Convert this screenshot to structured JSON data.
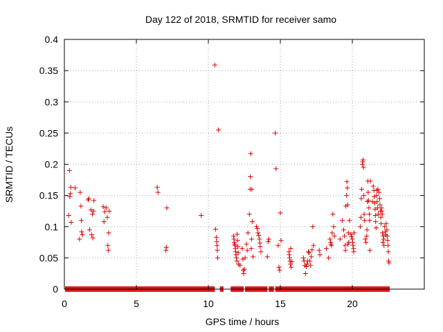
{
  "chart_data": {
    "type": "scatter",
    "title": "Day 122 of 2018, SRMTID for receiver samo",
    "xlabel": "GPS time / hours",
    "ylabel": "SRMTID / TECUs",
    "xlim": [
      0,
      25
    ],
    "ylim": [
      0,
      0.4
    ],
    "x_ticks": [
      0,
      5,
      10,
      15,
      20
    ],
    "x_tick_labels": [
      "0",
      "5",
      "10",
      "15",
      "20"
    ],
    "y_ticks": [
      0,
      0.05,
      0.1,
      0.15,
      0.2,
      0.25,
      0.3,
      0.35,
      0.4
    ],
    "y_tick_labels": [
      "0",
      "0.05",
      "0.1",
      "0.15",
      "0.2",
      "0.25",
      "0.3",
      "0.35",
      "0.4"
    ],
    "grid": true,
    "marker": "plus",
    "series_color": "#dd0000",
    "zero_baseline_ranges": [
      [
        0.05,
        10.45
      ],
      [
        10.8,
        11.05
      ],
      [
        11.55,
        12.45
      ],
      [
        12.55,
        14.1
      ],
      [
        14.2,
        14.55
      ],
      [
        14.65,
        22.6
      ]
    ],
    "series": [
      {
        "name": "SRMTID",
        "points": [
          [
            0.3,
            0.118
          ],
          [
            0.35,
            0.19
          ],
          [
            0.38,
            0.148
          ],
          [
            0.42,
            0.153
          ],
          [
            0.45,
            0.163
          ],
          [
            0.48,
            0.107
          ],
          [
            0.75,
            0.162
          ],
          [
            1.05,
            0.08
          ],
          [
            1.1,
            0.155
          ],
          [
            1.15,
            0.133
          ],
          [
            1.2,
            0.092
          ],
          [
            1.25,
            0.087
          ],
          [
            1.18,
            0.11
          ],
          [
            1.65,
            0.143
          ],
          [
            1.7,
            0.145
          ],
          [
            1.75,
            0.095
          ],
          [
            1.85,
            0.127
          ],
          [
            1.9,
            0.087
          ],
          [
            1.95,
            0.12
          ],
          [
            1.98,
            0.082
          ],
          [
            2.02,
            0.125
          ],
          [
            2.05,
            0.142
          ],
          [
            2.7,
            0.132
          ],
          [
            2.75,
            0.108
          ],
          [
            2.8,
            0.124
          ],
          [
            2.9,
            0.13
          ],
          [
            2.98,
            0.115
          ],
          [
            3.02,
            0.07
          ],
          [
            3.05,
            0.062
          ],
          [
            3.08,
            0.09
          ],
          [
            3.12,
            0.125
          ],
          [
            6.45,
            0.163
          ],
          [
            6.5,
            0.155
          ],
          [
            7.05,
            0.062
          ],
          [
            7.08,
            0.067
          ],
          [
            7.12,
            0.13
          ],
          [
            9.5,
            0.118
          ],
          [
            10.45,
            0.359
          ],
          [
            10.5,
            0.096
          ],
          [
            10.55,
            0.083
          ],
          [
            10.58,
            0.076
          ],
          [
            10.6,
            0.07
          ],
          [
            10.62,
            0.062
          ],
          [
            10.65,
            0.05
          ],
          [
            10.7,
            0.255
          ],
          [
            11.75,
            0.085
          ],
          [
            11.78,
            0.08
          ],
          [
            11.8,
            0.075
          ],
          [
            11.83,
            0.072
          ],
          [
            11.85,
            0.07
          ],
          [
            11.88,
            0.065
          ],
          [
            11.9,
            0.06
          ],
          [
            11.92,
            0.055
          ],
          [
            11.95,
            0.05
          ],
          [
            11.98,
            0.045
          ],
          [
            12.0,
            0.088
          ],
          [
            12.03,
            0.078
          ],
          [
            12.05,
            0.068
          ],
          [
            12.08,
            0.058
          ],
          [
            12.1,
            0.04
          ],
          [
            12.2,
            0.038
          ],
          [
            12.35,
            0.065
          ],
          [
            12.4,
            0.048
          ],
          [
            12.42,
            0.03
          ],
          [
            12.45,
            0.025
          ],
          [
            12.5,
            0.032
          ],
          [
            12.55,
            0.05
          ],
          [
            12.65,
            0.072
          ],
          [
            12.7,
            0.062
          ],
          [
            12.75,
            0.09
          ],
          [
            12.85,
            0.12
          ],
          [
            12.9,
            0.16
          ],
          [
            12.92,
            0.18
          ],
          [
            12.95,
            0.217
          ],
          [
            12.98,
            0.065
          ],
          [
            13.0,
            0.08
          ],
          [
            13.02,
            0.16
          ],
          [
            13.05,
            0.108
          ],
          [
            13.1,
            0.052
          ],
          [
            13.35,
            0.1
          ],
          [
            13.4,
            0.097
          ],
          [
            13.45,
            0.09
          ],
          [
            13.5,
            0.086
          ],
          [
            13.55,
            0.08
          ],
          [
            13.58,
            0.074
          ],
          [
            13.6,
            0.068
          ],
          [
            13.65,
            0.06
          ],
          [
            14.1,
            0.052
          ],
          [
            14.15,
            0.076
          ],
          [
            14.2,
            0.08
          ],
          [
            14.65,
            0.25
          ],
          [
            14.7,
            0.193
          ],
          [
            14.85,
            0.07
          ],
          [
            14.9,
            0.035
          ],
          [
            14.95,
            0.03
          ],
          [
            15.0,
            0.122
          ],
          [
            15.05,
            0.078
          ],
          [
            15.6,
            0.06
          ],
          [
            15.62,
            0.055
          ],
          [
            15.65,
            0.05
          ],
          [
            15.68,
            0.045
          ],
          [
            15.7,
            0.04
          ],
          [
            15.72,
            0.065
          ],
          [
            15.75,
            0.035
          ],
          [
            15.8,
            0.044
          ],
          [
            16.6,
            0.05
          ],
          [
            16.65,
            0.045
          ],
          [
            16.7,
            0.038
          ],
          [
            16.75,
            0.025
          ],
          [
            16.8,
            0.036
          ],
          [
            16.85,
            0.04
          ],
          [
            16.9,
            0.045
          ],
          [
            16.95,
            0.06
          ],
          [
            17.0,
            0.058
          ],
          [
            17.05,
            0.045
          ],
          [
            17.1,
            0.038
          ],
          [
            17.15,
            0.052
          ],
          [
            17.2,
            0.063
          ],
          [
            17.25,
            0.1
          ],
          [
            17.3,
            0.07
          ],
          [
            17.7,
            0.062
          ],
          [
            17.75,
            0.055
          ],
          [
            18.2,
            0.065
          ],
          [
            18.35,
            0.05
          ],
          [
            18.45,
            0.08
          ],
          [
            18.5,
            0.075
          ],
          [
            18.52,
            0.072
          ],
          [
            18.55,
            0.07
          ],
          [
            18.6,
            0.09
          ],
          [
            18.65,
            0.12
          ],
          [
            18.7,
            0.1
          ],
          [
            18.75,
            0.085
          ],
          [
            19.15,
            0.08
          ],
          [
            19.3,
            0.11
          ],
          [
            19.4,
            0.095
          ],
          [
            19.45,
            0.085
          ],
          [
            19.5,
            0.07
          ],
          [
            19.52,
            0.062
          ],
          [
            19.55,
            0.133
          ],
          [
            19.6,
            0.15
          ],
          [
            19.62,
            0.172
          ],
          [
            19.65,
            0.162
          ],
          [
            19.68,
            0.135
          ],
          [
            19.7,
            0.072
          ],
          [
            19.72,
            0.09
          ],
          [
            19.75,
            0.075
          ],
          [
            19.8,
            0.11
          ],
          [
            19.9,
            0.088
          ],
          [
            19.95,
            0.084
          ],
          [
            20.0,
            0.08
          ],
          [
            20.02,
            0.075
          ],
          [
            20.05,
            0.07
          ],
          [
            20.08,
            0.065
          ],
          [
            20.1,
            0.06
          ],
          [
            20.12,
            0.09
          ],
          [
            20.55,
            0.1
          ],
          [
            20.6,
            0.115
          ],
          [
            20.62,
            0.145
          ],
          [
            20.65,
            0.16
          ],
          [
            20.7,
            0.2
          ],
          [
            20.72,
            0.204
          ],
          [
            20.75,
            0.207
          ],
          [
            20.78,
            0.195
          ],
          [
            20.8,
            0.15
          ],
          [
            20.82,
            0.12
          ],
          [
            20.85,
            0.11
          ],
          [
            20.9,
            0.08
          ],
          [
            20.95,
            0.075
          ],
          [
            21.0,
            0.085
          ],
          [
            21.02,
            0.095
          ],
          [
            21.05,
            0.14
          ],
          [
            21.08,
            0.173
          ],
          [
            21.1,
            0.155
          ],
          [
            21.12,
            0.142
          ],
          [
            21.15,
            0.13
          ],
          [
            21.18,
            0.12
          ],
          [
            21.2,
            0.11
          ],
          [
            21.22,
            0.062
          ],
          [
            21.25,
            0.173
          ],
          [
            21.4,
            0.14
          ],
          [
            21.45,
            0.165
          ],
          [
            21.5,
            0.158
          ],
          [
            21.52,
            0.148
          ],
          [
            21.55,
            0.138
          ],
          [
            21.58,
            0.128
          ],
          [
            21.6,
            0.118
          ],
          [
            21.62,
            0.108
          ],
          [
            21.65,
            0.098
          ],
          [
            21.68,
            0.15
          ],
          [
            21.7,
            0.158
          ],
          [
            21.72,
            0.14
          ],
          [
            21.75,
            0.13
          ],
          [
            21.78,
            0.16
          ],
          [
            21.8,
            0.12
          ],
          [
            21.85,
            0.155
          ],
          [
            21.9,
            0.145
          ],
          [
            21.92,
            0.135
          ],
          [
            21.95,
            0.125
          ],
          [
            21.98,
            0.115
          ],
          [
            22.0,
            0.105
          ],
          [
            22.02,
            0.13
          ],
          [
            22.05,
            0.125
          ],
          [
            22.08,
            0.12
          ],
          [
            22.1,
            0.09
          ],
          [
            22.12,
            0.075
          ],
          [
            22.15,
            0.085
          ],
          [
            22.18,
            0.08
          ],
          [
            22.2,
            0.07
          ],
          [
            22.25,
            0.1
          ],
          [
            22.3,
            0.092
          ],
          [
            22.32,
            0.087
          ],
          [
            22.35,
            0.105
          ],
          [
            22.4,
            0.095
          ],
          [
            22.42,
            0.085
          ],
          [
            22.45,
            0.078
          ],
          [
            22.48,
            0.07
          ],
          [
            22.5,
            0.06
          ],
          [
            22.52,
            0.045
          ],
          [
            22.55,
            0.042
          ]
        ]
      }
    ]
  }
}
